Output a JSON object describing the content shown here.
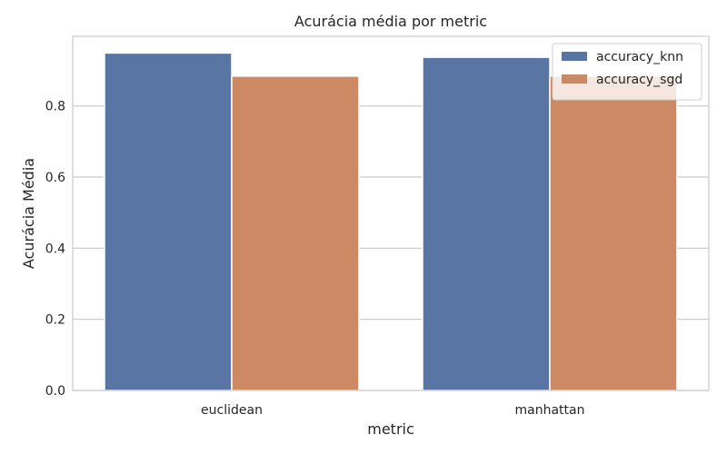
{
  "chart_data": {
    "type": "bar",
    "title": "Acurácia média por metric",
    "xlabel": "metric",
    "ylabel": "Acurácia Média",
    "categories": [
      "euclidean",
      "manhattan"
    ],
    "series": [
      {
        "name": "accuracy_knn",
        "values": [
          0.949,
          0.937
        ],
        "color": "#5875a4"
      },
      {
        "name": "accuracy_sgd",
        "values": [
          0.884,
          0.884
        ],
        "color": "#cc8963"
      }
    ],
    "ylim": [
      0,
      0.996
    ],
    "yticks": [
      0.0,
      0.2,
      0.4,
      0.6,
      0.8
    ],
    "ytick_labels": [
      "0.0",
      "0.2",
      "0.4",
      "0.6",
      "0.8"
    ],
    "grid": true,
    "legend_position": "top-right"
  }
}
